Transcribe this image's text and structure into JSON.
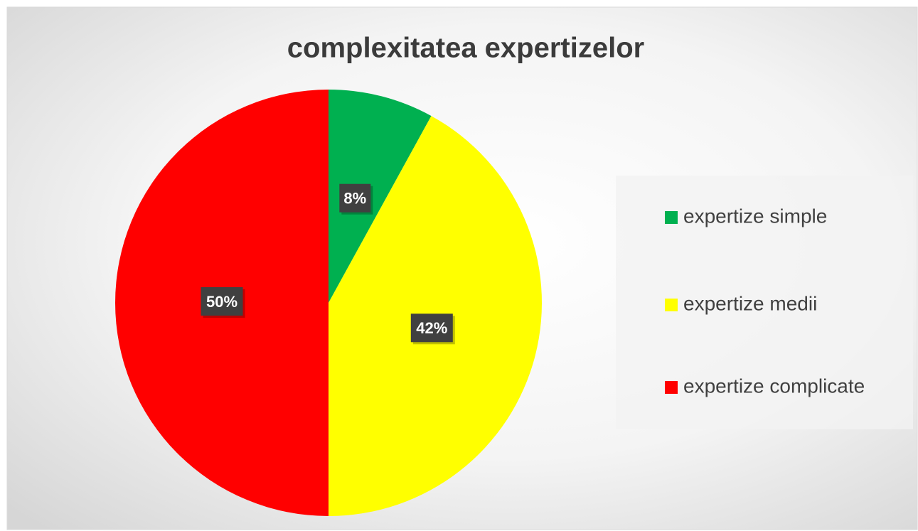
{
  "chart_data": {
    "type": "pie",
    "title": "complexitatea expertizelor",
    "categories": [
      "expertize simple",
      "expertize medii",
      "expertize complicate"
    ],
    "values": [
      8,
      42,
      50
    ],
    "value_labels": [
      "8%",
      "42%",
      "50%"
    ],
    "colors": [
      "#00b050",
      "#ffff00",
      "#ff0000"
    ],
    "legend": "right"
  }
}
